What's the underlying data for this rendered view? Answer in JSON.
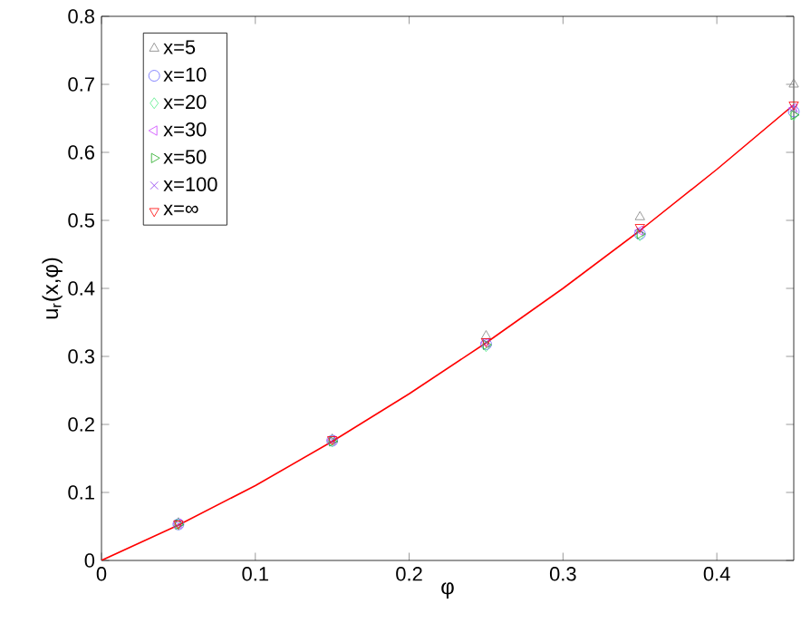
{
  "chart_data": {
    "type": "scatter",
    "xlabel": "φ",
    "ylabel": "u$_{r}$(x,φ)",
    "x": [
      0.05,
      0.15,
      0.25,
      0.35,
      0.45
    ],
    "series": [
      {
        "name": "x=5",
        "color": "#808080",
        "marker": "triangle",
        "values": [
          0.055,
          0.178,
          0.33,
          0.505,
          0.7
        ]
      },
      {
        "name": "x=10",
        "color": "#6666ff",
        "marker": "circle",
        "values": [
          0.053,
          0.176,
          0.318,
          0.48,
          0.66
        ]
      },
      {
        "name": "x=20",
        "color": "#55ee88",
        "marker": "diamond",
        "values": [
          0.053,
          0.175,
          0.315,
          0.478,
          0.655
        ]
      },
      {
        "name": "x=30",
        "color": "#cc44ff",
        "marker": "triangle-left",
        "values": [
          0.054,
          0.177,
          0.32,
          0.485,
          0.665
        ]
      },
      {
        "name": "x=50",
        "color": "#22aa22",
        "marker": "triangle-right",
        "values": [
          0.053,
          0.175,
          0.317,
          0.48,
          0.655
        ]
      },
      {
        "name": "x=100",
        "color": "#8833ee",
        "marker": "cross",
        "values": [
          0.054,
          0.177,
          0.32,
          0.485,
          0.665
        ]
      },
      {
        "name": "x=∞",
        "color": "#ff0000",
        "marker": "triangle-down",
        "values": [
          0.054,
          0.178,
          0.322,
          0.49,
          0.67
        ]
      },
      {
        "type": "line",
        "color": "#ff0000",
        "marker": "none",
        "line_style": "solid",
        "x": [
          0,
          0.05,
          0.1,
          0.15,
          0.2,
          0.25,
          0.3,
          0.35,
          0.4,
          0.45
        ],
        "values": [
          0,
          0.052,
          0.11,
          0.175,
          0.245,
          0.32,
          0.4,
          0.485,
          0.575,
          0.67
        ]
      }
    ],
    "xlim": [
      0,
      0.45
    ],
    "ylim": [
      0,
      0.8
    ],
    "xticks": [
      0,
      0.1,
      0.2,
      0.3,
      0.4
    ],
    "yticks": [
      0,
      0.1,
      0.2,
      0.3,
      0.4,
      0.5,
      0.6,
      0.7,
      0.8
    ],
    "legend": "top left",
    "grid": false
  }
}
